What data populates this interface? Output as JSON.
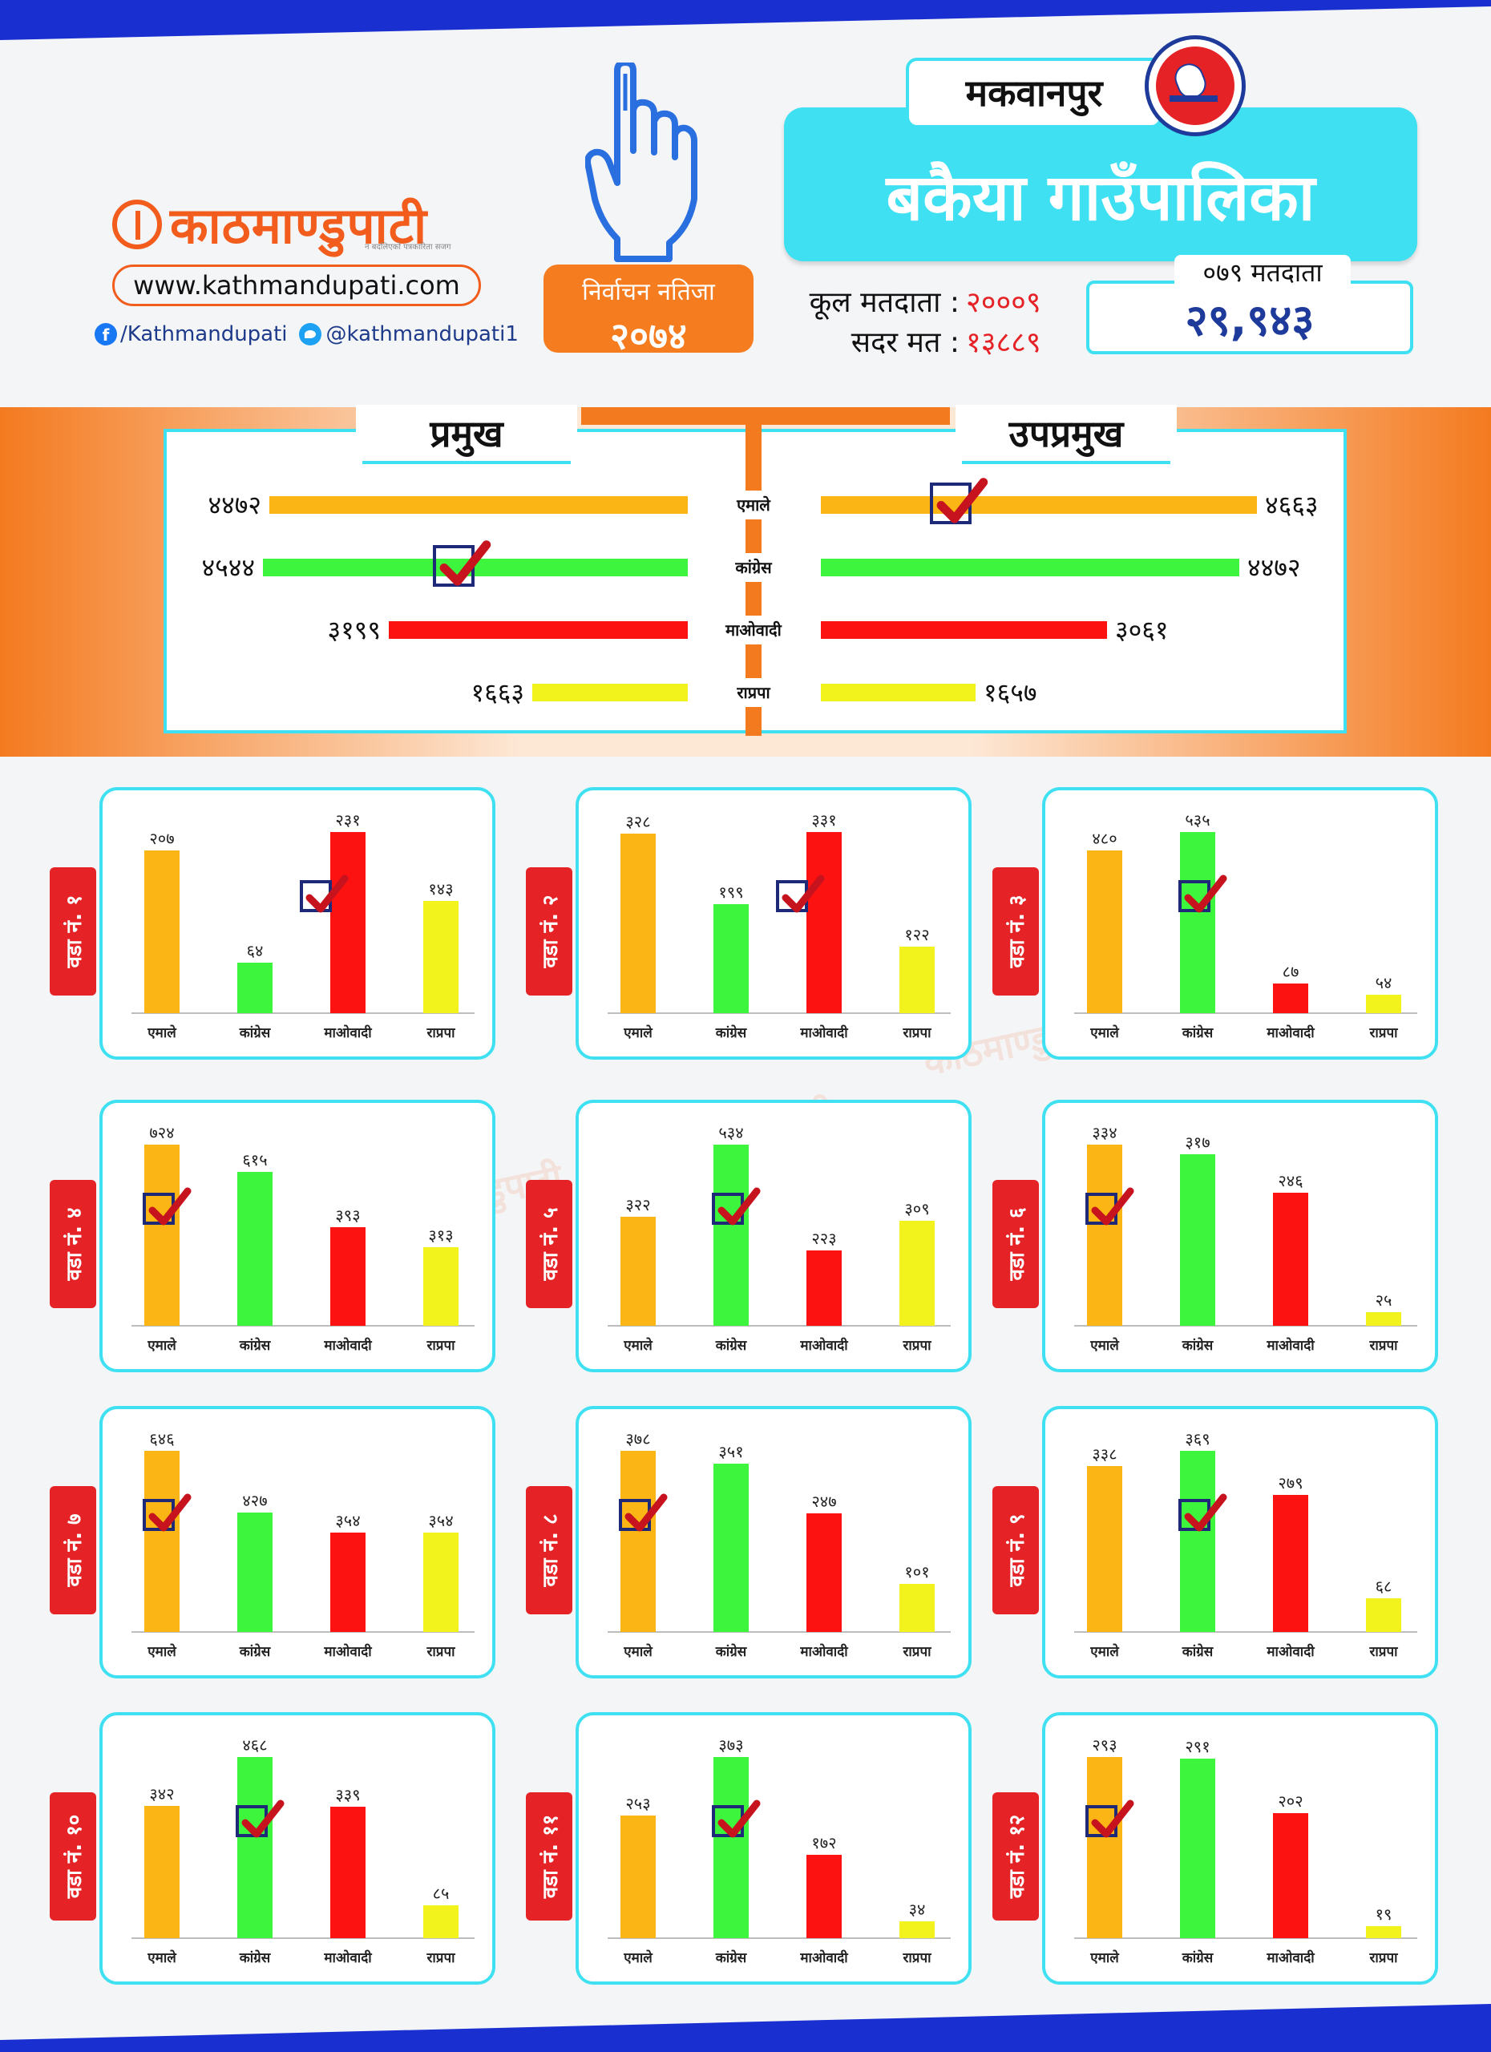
{
  "header": {
    "logo_text": "काठमाण्डुपाटी",
    "logo_tagline": "न बदलिएको पत्रकारिता सजग",
    "website": "www.kathmandupati.com",
    "facebook": "/Kathmandupati",
    "twitter": "@kathmandupati1",
    "election_label": "निर्वाचन नतिजा",
    "election_year": "२०७४",
    "district": "मकवानपुर",
    "municipality": "बकैया गाउँपालिका",
    "total_voters_label": "कूल मतदाता :",
    "total_voters": "२०००९",
    "valid_votes_label": "सदर मत :",
    "valid_votes": "१३८८९",
    "voters_079_label": "०७९ मतदाता",
    "voters_079": "२९,९४३"
  },
  "colors": {
    "emale": "#fbb515",
    "congress": "#3ef53e",
    "maoist": "#fd1212",
    "rpp": "#f2f21c",
    "accent": "#3ee0f2",
    "orange": "#f47a1f",
    "tick": "#c6131d"
  },
  "chart_data": [
    {
      "type": "bar",
      "title": "प्रमुख",
      "orientation": "horizontal",
      "categories": [
        "एमाले",
        "कांग्रेस",
        "माओवादी",
        "राप्रपा"
      ],
      "values": [
        4472,
        4544,
        3199,
        1663
      ],
      "labels": [
        "४४७२",
        "४५४४",
        "३१९९",
        "१६६३"
      ],
      "winner": "कांग्रेस"
    },
    {
      "type": "bar",
      "title": "उपप्रमुख",
      "orientation": "horizontal",
      "categories": [
        "एमाले",
        "कांग्रेस",
        "माओवादी",
        "राप्रपा"
      ],
      "values": [
        4663,
        4472,
        3061,
        1657
      ],
      "labels": [
        "४६६३",
        "४४७२",
        "३०६१",
        "१६५७"
      ],
      "winner": "एमाले"
    },
    {
      "type": "bar",
      "title": "वडा नं. १",
      "categories": [
        "एमाले",
        "कांग्रेस",
        "माओवादी",
        "राप्रपा"
      ],
      "values": [
        207,
        64,
        231,
        143
      ],
      "labels": [
        "२०७",
        "६४",
        "२३१",
        "१४३"
      ],
      "winner": 2
    },
    {
      "type": "bar",
      "title": "वडा नं. २",
      "categories": [
        "एमाले",
        "कांग्रेस",
        "माओवादी",
        "राप्रपा"
      ],
      "values": [
        328,
        199,
        331,
        122
      ],
      "labels": [
        "३२८",
        "१९९",
        "३३१",
        "१२२"
      ],
      "winner": 2
    },
    {
      "type": "bar",
      "title": "वडा नं. ३",
      "categories": [
        "एमाले",
        "कांग्रेस",
        "माओवादी",
        "राप्रपा"
      ],
      "values": [
        480,
        535,
        87,
        54
      ],
      "labels": [
        "४८०",
        "५३५",
        "८७",
        "५४"
      ],
      "winner": 1
    },
    {
      "type": "bar",
      "title": "वडा नं. ४",
      "categories": [
        "एमाले",
        "कांग्रेस",
        "माओवादी",
        "राप्रपा"
      ],
      "values": [
        724,
        615,
        393,
        313
      ],
      "labels": [
        "७२४",
        "६१५",
        "३९३",
        "३१३"
      ],
      "winner": 0
    },
    {
      "type": "bar",
      "title": "वडा नं. ५",
      "categories": [
        "एमाले",
        "कांग्रेस",
        "माओवादी",
        "राप्रपा"
      ],
      "values": [
        322,
        534,
        223,
        309
      ],
      "labels": [
        "३२२",
        "५३४",
        "२२३",
        "३०९"
      ],
      "winner": 1
    },
    {
      "type": "bar",
      "title": "वडा नं. ६",
      "categories": [
        "एमाले",
        "कांग्रेस",
        "माओवादी",
        "राप्रपा"
      ],
      "values": [
        334,
        317,
        246,
        25
      ],
      "labels": [
        "३३४",
        "३१७",
        "२४६",
        "२५"
      ],
      "winner": 0
    },
    {
      "type": "bar",
      "title": "वडा नं. ७",
      "categories": [
        "एमाले",
        "कांग्रेस",
        "माओवादी",
        "राप्रपा"
      ],
      "values": [
        646,
        427,
        354,
        354
      ],
      "labels": [
        "६४६",
        "४२७",
        "३५४",
        "३५४"
      ],
      "winner": 0
    },
    {
      "type": "bar",
      "title": "वडा नं. ८",
      "categories": [
        "एमाले",
        "कांग्रेस",
        "माओवादी",
        "राप्रपा"
      ],
      "values": [
        378,
        351,
        247,
        101
      ],
      "labels": [
        "३७८",
        "३५१",
        "२४७",
        "१०१"
      ],
      "winner": 0
    },
    {
      "type": "bar",
      "title": "वडा नं. ९",
      "categories": [
        "एमाले",
        "कांग्रेस",
        "माओवादी",
        "राप्रपा"
      ],
      "values": [
        338,
        369,
        279,
        68
      ],
      "labels": [
        "३३८",
        "३६९",
        "२७९",
        "६८"
      ],
      "winner": 1
    },
    {
      "type": "bar",
      "title": "वडा नं. १०",
      "categories": [
        "एमाले",
        "कांग्रेस",
        "माओवादी",
        "राप्रपा"
      ],
      "values": [
        342,
        468,
        339,
        85
      ],
      "labels": [
        "३४२",
        "४६८",
        "३३९",
        "८५"
      ],
      "winner": 1
    },
    {
      "type": "bar",
      "title": "वडा नं. ११",
      "categories": [
        "एमाले",
        "कांग्रेस",
        "माओवादी",
        "राप्रपा"
      ],
      "values": [
        253,
        373,
        172,
        34
      ],
      "labels": [
        "२५३",
        "३७३",
        "१७२",
        "३४"
      ],
      "winner": 1
    },
    {
      "type": "bar",
      "title": "वडा नं. १२",
      "categories": [
        "एमाले",
        "कांग्रेस",
        "माओवादी",
        "राप्रपा"
      ],
      "values": [
        293,
        291,
        202,
        19
      ],
      "labels": [
        "२९३",
        "२९१",
        "२०२",
        "१९"
      ],
      "winner": 0
    }
  ]
}
